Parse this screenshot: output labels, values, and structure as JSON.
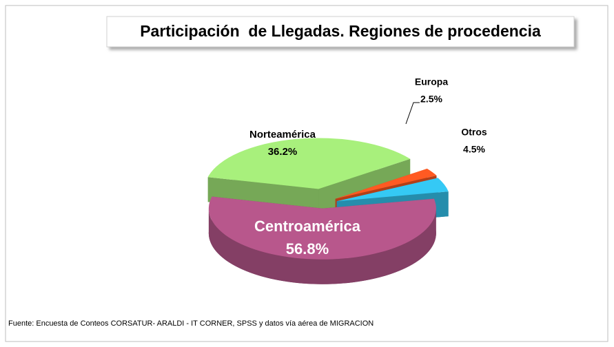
{
  "chart_data": {
    "type": "pie3d",
    "title": "Participación  de Llegadas. Regiones de procedencia",
    "categories": [
      "Centroamérica",
      "Norteamérica",
      "Europa",
      "Otros"
    ],
    "values": [
      56.8,
      36.2,
      2.5,
      4.5
    ],
    "value_labels": [
      "56.8%",
      "36.2%",
      "2.5%",
      "4.5%"
    ],
    "colors": [
      "#b8578c",
      "#a8f07c",
      "#ff5a22",
      "#35c9f5"
    ],
    "source": "Fuente: Encuesta de Conteos CORSATUR- ARALDI - IT CORNER, SPSS y datos vía aérea de MIGRACION"
  }
}
